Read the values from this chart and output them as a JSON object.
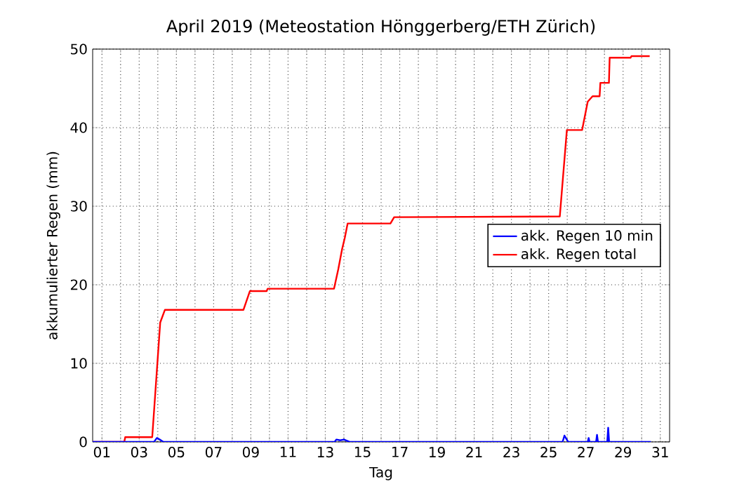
{
  "chart_data": {
    "type": "line",
    "title": "April 2019  (Meteostation Hönggerberg/ETH Zürich)",
    "xlabel": "Tag",
    "ylabel": "akkumulierter Regen (mm)",
    "xlim": [
      0.5,
      31.5
    ],
    "ylim": [
      0,
      50
    ],
    "xticks": [
      {
        "value": 1,
        "label": "01"
      },
      {
        "value": 2,
        "label": null
      },
      {
        "value": 3,
        "label": "03"
      },
      {
        "value": 4,
        "label": null
      },
      {
        "value": 5,
        "label": "05"
      },
      {
        "value": 6,
        "label": null
      },
      {
        "value": 7,
        "label": "07"
      },
      {
        "value": 8,
        "label": null
      },
      {
        "value": 9,
        "label": "09"
      },
      {
        "value": 10,
        "label": null
      },
      {
        "value": 11,
        "label": "11"
      },
      {
        "value": 12,
        "label": null
      },
      {
        "value": 13,
        "label": "13"
      },
      {
        "value": 14,
        "label": null
      },
      {
        "value": 15,
        "label": "15"
      },
      {
        "value": 16,
        "label": null
      },
      {
        "value": 17,
        "label": "17"
      },
      {
        "value": 18,
        "label": null
      },
      {
        "value": 19,
        "label": "19"
      },
      {
        "value": 20,
        "label": null
      },
      {
        "value": 21,
        "label": "21"
      },
      {
        "value": 22,
        "label": null
      },
      {
        "value": 23,
        "label": "23"
      },
      {
        "value": 24,
        "label": null
      },
      {
        "value": 25,
        "label": "25"
      },
      {
        "value": 26,
        "label": null
      },
      {
        "value": 27,
        "label": "27"
      },
      {
        "value": 28,
        "label": null
      },
      {
        "value": 29,
        "label": "29"
      },
      {
        "value": 30,
        "label": null
      },
      {
        "value": 31,
        "label": "31"
      }
    ],
    "yticks": [
      0,
      10,
      20,
      30,
      40,
      50
    ],
    "grid": true,
    "legend": "right",
    "marker": "none",
    "line_style": "solid",
    "series": [
      {
        "name": "akk. Regen 10 min",
        "color": "#0000ff",
        "x": [
          0.5,
          3.8,
          3.95,
          4.1,
          4.3,
          13.5,
          13.6,
          13.8,
          14.0,
          14.3,
          25.75,
          25.85,
          25.95,
          26.05,
          27.1,
          27.15,
          27.2,
          27.55,
          27.6,
          27.65,
          28.15,
          28.2,
          28.25,
          30.5
        ],
        "values": [
          0,
          0,
          0.5,
          0.3,
          0,
          0,
          0.3,
          0.2,
          0.3,
          0,
          0,
          0.8,
          0.4,
          0,
          0,
          0.5,
          0,
          0,
          0.9,
          0,
          0,
          1.8,
          0,
          0
        ]
      },
      {
        "name": "akk. Regen total",
        "color": "#ff0000",
        "x": [
          0.5,
          2.2,
          2.25,
          3.7,
          4.13,
          4.38,
          8.6,
          8.95,
          9.85,
          9.9,
          13.47,
          13.7,
          13.9,
          14.05,
          14.2,
          16.5,
          16.7,
          25.6,
          25.98,
          26.8,
          26.85,
          27.1,
          27.36,
          27.74,
          27.78,
          28.24,
          28.28,
          29.4,
          29.45,
          30.43
        ],
        "values": [
          0,
          0,
          0.6,
          0.6,
          15.2,
          16.8,
          16.8,
          19.2,
          19.2,
          19.5,
          19.5,
          22,
          24.5,
          26,
          27.8,
          27.8,
          28.6,
          28.7,
          39.7,
          39.7,
          40.3,
          43.3,
          44.0,
          44.0,
          45.7,
          45.7,
          48.9,
          48.9,
          49.1,
          49.1
        ]
      }
    ]
  }
}
